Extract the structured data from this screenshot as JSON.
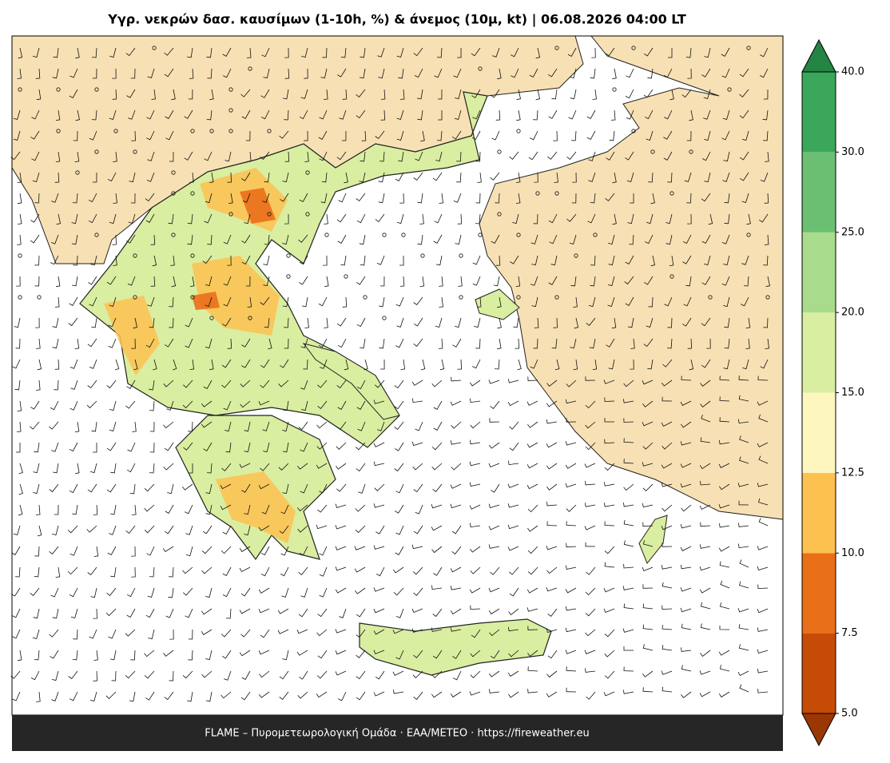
{
  "title": "Υγρ. νεκρών δασ. καυσίμων (1-10h, %) & άνεμος (10μ, kt)  |  06.08.2026 04:00 LT",
  "footer": "FLAME – Πυρομετεωρολογική Ομάδα · ΕΑΑ/METEO · https://fireweather.eu",
  "colorbar": {
    "ticks": [
      {
        "value": 5,
        "label": "5.0"
      },
      {
        "value": 7.5,
        "label": "7.5"
      },
      {
        "value": 10,
        "label": "10.0"
      },
      {
        "value": 12.5,
        "label": "12.5"
      },
      {
        "value": 15,
        "label": "15.0"
      },
      {
        "value": 20,
        "label": "20.0"
      },
      {
        "value": 25,
        "label": "25.0"
      },
      {
        "value": 30,
        "label": "30.0"
      },
      {
        "value": 40,
        "label": "40.0"
      }
    ],
    "colors": [
      "#c64b06",
      "#e96f19",
      "#fdc150",
      "#fef6bf",
      "#d9eea0",
      "#a8db8b",
      "#6bbf72",
      "#3ba75a"
    ],
    "under_color": "#9a3705",
    "over_color": "#238443"
  }
}
